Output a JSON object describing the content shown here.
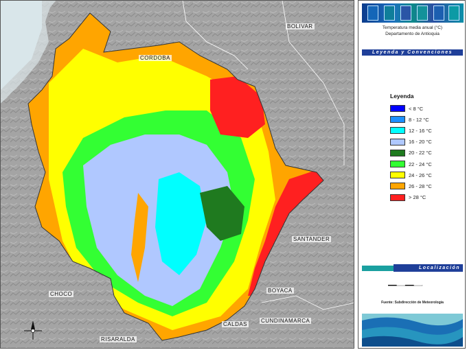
{
  "map": {
    "title_line_1": "Temperatura media anual (°C)",
    "title_line_2": "Departamento de Antioquia",
    "departments": [
      {
        "id": "cordoba",
        "label": "CORDOBA"
      },
      {
        "id": "bolivar",
        "label": "BOLIVAR"
      },
      {
        "id": "santander",
        "label": "SANTANDER"
      },
      {
        "id": "choco",
        "label": "CHOCO"
      },
      {
        "id": "boyaca",
        "label": "BOYACA"
      },
      {
        "id": "cundinamarca",
        "label": "CUNDINAMARCA"
      },
      {
        "id": "caldas",
        "label": "CALDAS"
      },
      {
        "id": "risaralda",
        "label": "RISARALDA"
      }
    ],
    "north_arrow_icon": "compass-rose-icon"
  },
  "panel": {
    "legend_header": "Leyenda y Convenciones",
    "legend_title": "Leyenda",
    "legend_items": [
      {
        "label": "< 8 °C",
        "color": "#0000ff"
      },
      {
        "label": "8 - 12 °C",
        "color": "#1e90ff"
      },
      {
        "label": "12 - 16 °C",
        "color": "#00ffff"
      },
      {
        "label": "16 - 20 °C",
        "color": "#b0c8ff"
      },
      {
        "label": "20 - 22 °C",
        "color": "#1f7a1f"
      },
      {
        "label": "22 - 24 °C",
        "color": "#33ff33"
      },
      {
        "label": "24 - 26 °C",
        "color": "#ffff00"
      },
      {
        "label": "26 - 28 °C",
        "color": "#ffa500"
      },
      {
        "label": "> 28 °C",
        "color": "#ff2020"
      }
    ],
    "location_header": "Localización",
    "source_text": "Fuente: Subdirección de Meteorología",
    "colors": {
      "header_bar": "#1f3f99",
      "banner_accent": "#1aa0a0"
    }
  }
}
